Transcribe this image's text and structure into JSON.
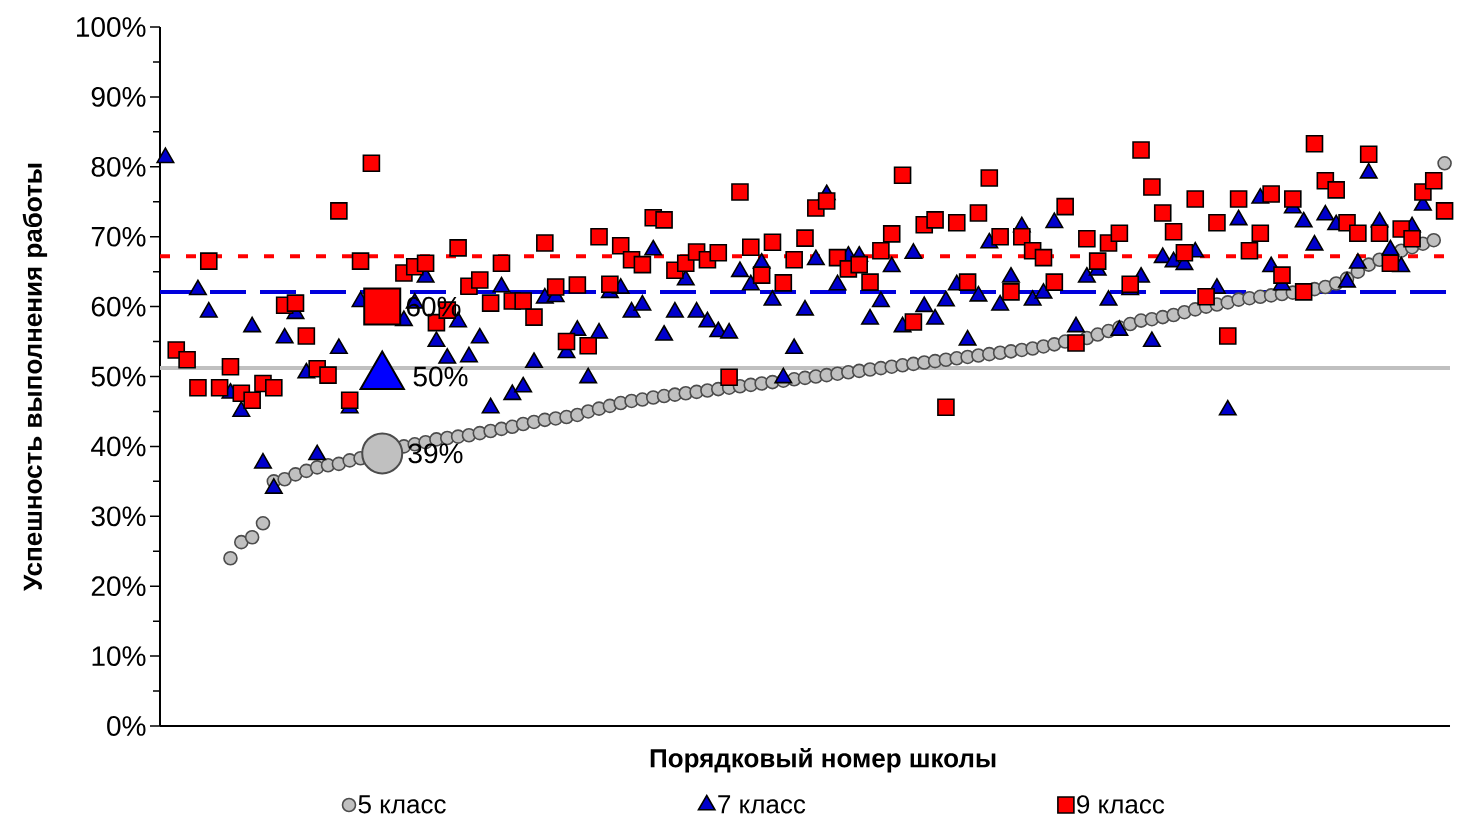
{
  "chart_data": {
    "type": "scatter",
    "xlabel": "Порядковый номер школы",
    "ylabel": "Успешность выполнения работы",
    "categories": [
      null,
      null,
      null,
      null,
      null,
      null,
      null,
      null,
      null,
      null,
      null,
      null,
      null,
      null,
      null,
      null,
      null,
      null,
      null,
      null,
      null,
      null,
      null,
      null,
      null,
      null,
      null,
      null,
      null,
      null,
      null,
      null,
      null,
      null,
      null,
      null,
      null,
      null,
      null,
      null,
      null,
      null,
      null,
      null,
      null,
      null,
      null,
      null,
      null,
      null,
      null,
      null,
      null,
      null,
      null,
      null,
      null,
      null,
      null,
      null,
      null,
      null,
      null,
      null,
      null,
      null,
      null,
      null,
      null,
      null,
      null,
      null,
      null,
      null,
      null,
      null,
      null,
      null,
      null,
      null,
      null,
      null,
      null,
      null,
      null,
      null,
      null,
      null,
      null,
      null,
      null,
      null,
      null,
      null,
      null,
      null,
      null,
      null,
      null,
      null,
      null,
      null,
      null,
      null,
      null,
      null,
      null,
      null,
      null,
      null,
      null,
      null,
      null,
      null,
      null,
      null,
      null,
      null,
      null
    ],
    "ylim": [
      0,
      100
    ],
    "yticks": [
      {
        "value": 0,
        "label": "0%"
      },
      {
        "value": 10,
        "label": "10%"
      },
      {
        "value": 20,
        "label": "20%"
      },
      {
        "value": 30,
        "label": "30%"
      },
      {
        "value": 40,
        "label": "40%"
      },
      {
        "value": 50,
        "label": "50%"
      },
      {
        "value": 60,
        "label": "60%"
      },
      {
        "value": 70,
        "label": "70%"
      },
      {
        "value": 80,
        "label": "80%"
      },
      {
        "value": 90,
        "label": "90%"
      },
      {
        "value": 100,
        "label": "100%"
      }
    ],
    "legend": "bottom",
    "series": [
      {
        "name": "5 класс",
        "color": "#c0c0c0",
        "marker": "circle",
        "values": [
          null,
          null,
          null,
          null,
          null,
          null,
          24,
          26.3,
          27,
          29,
          35,
          35.3,
          36,
          36.5,
          37,
          37.3,
          37.5,
          38,
          38.3,
          null,
          null,
          null,
          40,
          40.3,
          40.6,
          41,
          41.2,
          41.4,
          41.6,
          41.9,
          42.2,
          42.5,
          42.8,
          43.2,
          43.5,
          43.8,
          44,
          44.2,
          44.5,
          45,
          45.4,
          45.8,
          46.2,
          46.5,
          46.7,
          47,
          47.2,
          47.4,
          47.6,
          47.8,
          48,
          48.2,
          48.4,
          48.6,
          48.8,
          49,
          49.2,
          49.4,
          49.6,
          49.8,
          50,
          50.2,
          50.4,
          50.6,
          50.8,
          51,
          51.2,
          51.4,
          51.6,
          51.8,
          52,
          52.2,
          52.4,
          52.6,
          52.8,
          53,
          53.2,
          53.4,
          53.6,
          53.8,
          54,
          54.3,
          54.6,
          55,
          null,
          55.5,
          56,
          56.5,
          57,
          57.5,
          58,
          58.2,
          58.5,
          58.8,
          59.2,
          59.6,
          60,
          60.3,
          60.6,
          61,
          61.2,
          61.4,
          61.6,
          61.8,
          62,
          null,
          62.5,
          62.8,
          63.3,
          64,
          65,
          66,
          66.7,
          null,
          68,
          68.5,
          69,
          69.5,
          80.5
        ]
      },
      {
        "name": "7 класс",
        "color": "#0000cc",
        "marker": "triangle",
        "values": [
          81.3,
          null,
          null,
          62.4,
          59.2,
          null,
          47.6,
          45,
          57.1,
          37.6,
          34,
          55.5,
          59,
          50.5,
          38.8,
          null,
          54,
          45.5,
          60.7,
          null,
          null,
          null,
          58,
          60.5,
          64.2,
          55,
          52.6,
          57.8,
          52.8,
          55.5,
          45.5,
          62.8,
          47.4,
          48.5,
          52,
          61.2,
          61.4,
          53.4,
          56.6,
          49.8,
          56.2,
          62,
          62.6,
          59.2,
          60.2,
          68.1,
          55.9,
          59.2,
          63.8,
          59.2,
          57.8,
          56.4,
          56.2,
          65,
          63.1,
          66.2,
          60.9,
          49.8,
          54,
          59.5,
          66.7,
          76,
          63.1,
          67.2,
          67.2,
          58.2,
          60.7,
          65.7,
          57.1,
          67.6,
          60,
          58.2,
          60.8,
          63.1,
          55.2,
          61.5,
          69.1,
          60.2,
          64.2,
          71.4,
          60.9,
          61.9,
          72,
          null,
          57.1,
          64.2,
          65.2,
          60.9,
          56.6,
          62.4,
          64.2,
          55,
          67,
          66.4,
          66,
          67.8,
          null,
          62.6,
          45.2,
          72.4,
          null,
          75.5,
          65.7,
          63.1,
          74.1,
          72.1,
          68.8,
          73.1,
          71.7,
          63.5,
          66.2,
          79.1,
          72.1,
          68.1,
          65.7,
          71.4,
          74.5,
          null,
          null
        ]
      },
      {
        "name": "9 класс",
        "color": "#ff0000",
        "marker": "square",
        "values": [
          null,
          53.8,
          52.4,
          48.4,
          66.5,
          48.4,
          51.4,
          47.6,
          46.6,
          49,
          48.4,
          60.2,
          60.5,
          55.8,
          51.1,
          50.2,
          73.7,
          46.6,
          66.5,
          80.5,
          null,
          null,
          64.8,
          65.7,
          66.2,
          57.7,
          59.5,
          68.4,
          62.9,
          63.8,
          60.5,
          66.2,
          60.8,
          60.8,
          58.5,
          69.1,
          62.8,
          55,
          63.1,
          54.4,
          70,
          63.2,
          68.7,
          66.7,
          66,
          72.7,
          72.4,
          65.2,
          66.2,
          67.8,
          66.7,
          67.7,
          49.9,
          76.4,
          68.5,
          64.5,
          69.2,
          63.4,
          66.7,
          69.8,
          74.1,
          75.1,
          67,
          65.4,
          66,
          63.5,
          68,
          70.4,
          78.8,
          57.8,
          71.7,
          72.4,
          45.6,
          72,
          63.5,
          73.4,
          78.4,
          70,
          62.1,
          70,
          68,
          67,
          63.5,
          74.3,
          54.8,
          69.7,
          66.5,
          69.1,
          70.5,
          63.2,
          82.4,
          77.1,
          73.4,
          70.7,
          67.7,
          75.4,
          61.4,
          72,
          55.8,
          75.4,
          68,
          70.5,
          76.1,
          64.5,
          75.4,
          62.1,
          83.3,
          78,
          76.7,
          72,
          70.5,
          81.8,
          70.5,
          66.2,
          71.1,
          69.7,
          76.4,
          78,
          73.7
        ]
      },
      {
        "color": "#c0c0c0",
        "marker": "circle",
        "values": [
          null,
          null,
          null,
          null,
          null,
          null,
          null,
          null,
          null,
          null,
          null,
          null,
          null,
          null,
          null,
          null,
          null,
          null,
          null,
          null,
          39,
          null,
          null,
          null,
          null,
          null,
          null,
          null,
          null,
          null,
          null,
          null,
          null,
          null,
          null,
          null,
          null,
          null,
          null,
          null,
          null,
          null,
          null,
          null,
          null,
          null,
          null,
          null,
          null,
          null,
          null,
          null,
          null,
          null,
          null,
          null,
          null,
          null,
          null,
          null,
          null,
          null,
          null,
          null,
          null,
          null,
          null,
          null,
          null,
          null,
          null,
          null,
          null,
          null,
          null,
          null,
          null,
          null,
          null,
          null,
          null,
          null,
          null,
          null,
          null,
          null,
          null,
          null,
          null,
          null,
          null,
          null,
          null,
          null,
          null,
          null,
          null,
          null,
          null,
          null,
          null,
          null,
          null,
          null,
          null,
          null,
          null,
          null,
          null,
          null,
          null,
          null,
          null,
          null,
          null,
          null,
          null,
          null,
          null
        ],
        "value_labels": [
          null,
          null,
          null,
          null,
          null,
          null,
          null,
          null,
          null,
          null,
          null,
          null,
          null,
          null,
          null,
          null,
          null,
          null,
          null,
          null,
          "39%",
          null,
          null,
          null,
          null,
          null,
          null,
          null,
          null,
          null,
          null,
          null,
          null,
          null,
          null,
          null,
          null,
          null,
          null,
          null,
          null,
          null,
          null,
          null,
          null,
          null,
          null,
          null,
          null,
          null,
          null,
          null,
          null,
          null,
          null,
          null,
          null,
          null,
          null,
          null,
          null,
          null,
          null,
          null,
          null,
          null,
          null,
          null,
          null,
          null,
          null,
          null,
          null,
          null,
          null,
          null,
          null,
          null,
          null,
          null,
          null,
          null,
          null,
          null,
          null,
          null,
          null,
          null,
          null,
          null,
          null,
          null,
          null,
          null,
          null,
          null,
          null,
          null,
          null,
          null,
          null,
          null,
          null,
          null,
          null,
          null,
          null,
          null,
          null,
          null,
          null,
          null,
          null,
          null,
          null,
          null,
          null,
          null,
          null
        ]
      },
      {
        "color": "#0000ff",
        "marker": "triangle",
        "values": [
          null,
          null,
          null,
          null,
          null,
          null,
          null,
          null,
          null,
          null,
          null,
          null,
          null,
          null,
          null,
          null,
          null,
          null,
          null,
          null,
          50,
          null,
          null,
          null,
          null,
          null,
          null,
          null,
          null,
          null,
          null,
          null,
          null,
          null,
          null,
          null,
          null,
          null,
          null,
          null,
          null,
          null,
          null,
          null,
          null,
          null,
          null,
          null,
          null,
          null,
          null,
          null,
          null,
          null,
          null,
          null,
          null,
          null,
          null,
          null,
          null,
          null,
          null,
          null,
          null,
          null,
          null,
          null,
          null,
          null,
          null,
          null,
          null,
          null,
          null,
          null,
          null,
          null,
          null,
          null,
          null,
          null,
          null,
          null,
          null,
          null,
          null,
          null,
          null,
          null,
          null,
          null,
          null,
          null,
          null,
          null,
          null,
          null,
          null,
          null,
          null,
          null,
          null,
          null,
          null,
          null,
          null,
          null,
          null,
          null,
          null,
          null,
          null,
          null,
          null,
          null,
          null,
          null,
          null
        ],
        "value_labels": [
          null,
          null,
          null,
          null,
          null,
          null,
          null,
          null,
          null,
          null,
          null,
          null,
          null,
          null,
          null,
          null,
          null,
          null,
          null,
          null,
          "50%",
          null,
          null,
          null,
          null,
          null,
          null,
          null,
          null,
          null,
          null,
          null,
          null,
          null,
          null,
          null,
          null,
          null,
          null,
          null,
          null,
          null,
          null,
          null,
          null,
          null,
          null,
          null,
          null,
          null,
          null,
          null,
          null,
          null,
          null,
          null,
          null,
          null,
          null,
          null,
          null,
          null,
          null,
          null,
          null,
          null,
          null,
          null,
          null,
          null,
          null,
          null,
          null,
          null,
          null,
          null,
          null,
          null,
          null,
          null,
          null,
          null,
          null,
          null,
          null,
          null,
          null,
          null,
          null,
          null,
          null,
          null,
          null,
          null,
          null,
          null,
          null,
          null,
          null,
          null,
          null,
          null,
          null,
          null,
          null,
          null,
          null,
          null,
          null,
          null,
          null,
          null,
          null,
          null,
          null,
          null,
          null,
          null,
          null
        ]
      },
      {
        "color": "#ff0000",
        "marker": "square",
        "values": [
          null,
          null,
          null,
          null,
          null,
          null,
          null,
          null,
          null,
          null,
          null,
          null,
          null,
          null,
          null,
          null,
          null,
          null,
          null,
          null,
          60,
          null,
          null,
          null,
          null,
          null,
          null,
          null,
          null,
          null,
          null,
          null,
          null,
          null,
          null,
          null,
          null,
          null,
          null,
          null,
          null,
          null,
          null,
          null,
          null,
          null,
          null,
          null,
          null,
          null,
          null,
          null,
          null,
          null,
          null,
          null,
          null,
          null,
          null,
          null,
          null,
          null,
          null,
          null,
          null,
          null,
          null,
          null,
          null,
          null,
          null,
          null,
          null,
          null,
          null,
          null,
          null,
          null,
          null,
          null,
          null,
          null,
          null,
          null,
          null,
          null,
          null,
          null,
          null,
          null,
          null,
          null,
          null,
          null,
          null,
          null,
          null,
          null,
          null,
          null,
          null,
          null,
          null,
          null,
          null,
          null,
          null,
          null,
          null,
          null,
          null,
          null,
          null,
          null,
          null,
          null,
          null,
          null,
          null
        ],
        "value_labels": [
          null,
          null,
          null,
          null,
          null,
          null,
          null,
          null,
          null,
          null,
          null,
          null,
          null,
          null,
          null,
          null,
          null,
          null,
          null,
          null,
          "60%",
          null,
          null,
          null,
          null,
          null,
          null,
          null,
          null,
          null,
          null,
          null,
          null,
          null,
          null,
          null,
          null,
          null,
          null,
          null,
          null,
          null,
          null,
          null,
          null,
          null,
          null,
          null,
          null,
          null,
          null,
          null,
          null,
          null,
          null,
          null,
          null,
          null,
          null,
          null,
          null,
          null,
          null,
          null,
          null,
          null,
          null,
          null,
          null,
          null,
          null,
          null,
          null,
          null,
          null,
          null,
          null,
          null,
          null,
          null,
          null,
          null,
          null,
          null,
          null,
          null,
          null,
          null,
          null,
          null,
          null,
          null,
          null,
          null,
          null,
          null,
          null,
          null,
          null,
          null,
          null,
          null,
          null,
          null,
          null,
          null,
          null,
          null,
          null,
          null,
          null,
          null,
          null,
          null,
          null,
          null,
          null,
          null,
          null
        ]
      }
    ],
    "ref_lines": [
      {
        "axis": "y",
        "value": 51.2,
        "color": "#c0c0c0",
        "line_style": "solid"
      },
      {
        "axis": "y",
        "value": 62.1,
        "color": "#0000dd",
        "line_style": "dashed"
      },
      {
        "axis": "y",
        "value": 67.2,
        "color": "#ff0000",
        "line_style": "dotted"
      }
    ]
  }
}
